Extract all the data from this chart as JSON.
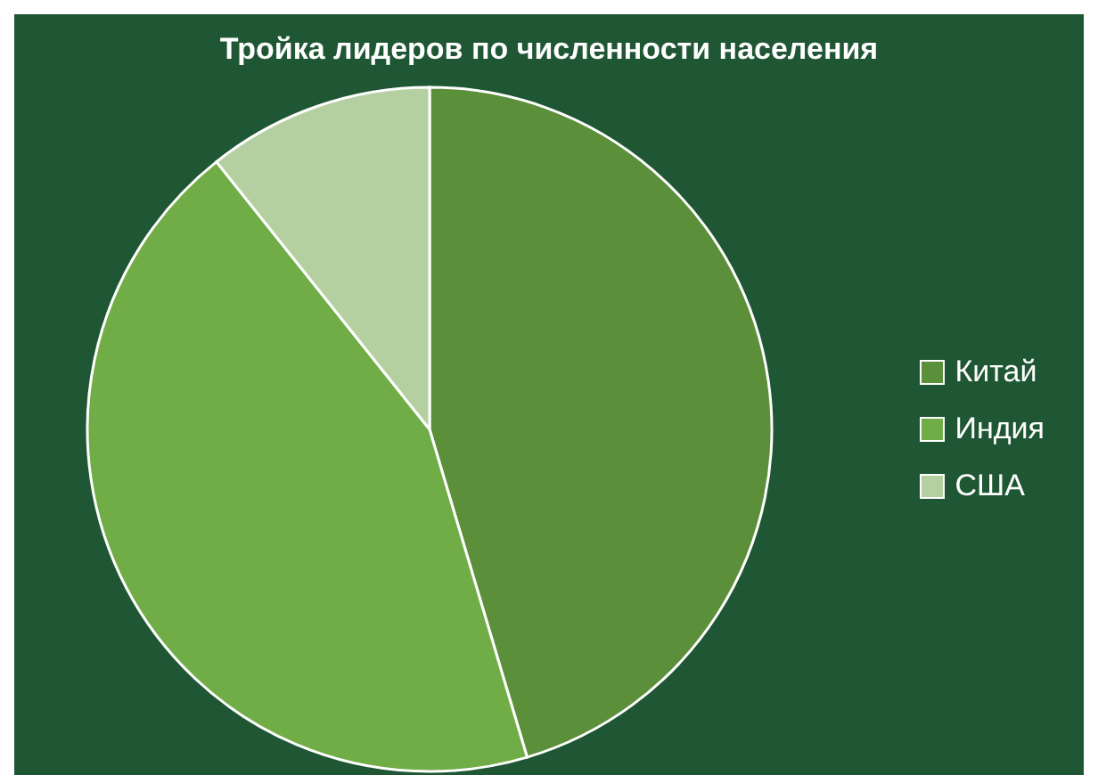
{
  "chart_data": {
    "type": "pie",
    "title": "Тройка лидеров по численности населения",
    "categories": [
      "Китай",
      "Индия",
      "США"
    ],
    "values": [
      45.4,
      43.9,
      10.7
    ],
    "colors": [
      "#5b8f3a",
      "#70ad47",
      "#b5d0a0"
    ],
    "legend": "right"
  }
}
